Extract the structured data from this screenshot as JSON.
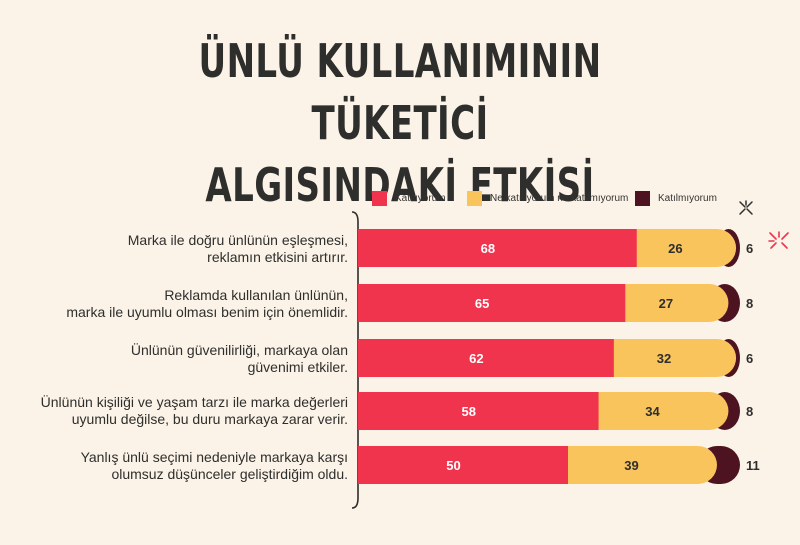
{
  "title_lines": [
    "ÜNLÜ KULLANIMININ TÜKETİCİ",
    "ALGISINDAKİ ETKİSİ"
  ],
  "colors": {
    "agree": "#F0344E",
    "neutral": "#FAC45C",
    "disagree": "#4D1320",
    "background": "#FBF3E8",
    "text": "#2E2E2C"
  },
  "legend": [
    {
      "label": "Katılıyorum",
      "color": "#F0344E"
    },
    {
      "label": "Ne katılıyorum ne katılmıyorum",
      "color": "#FAC45C"
    },
    {
      "label": "Katılmıyorum",
      "color": "#4D1320"
    }
  ],
  "chart_data": {
    "type": "bar",
    "orientation": "horizontal",
    "stacked": true,
    "categories": [
      [
        "Marka ile doğru ünlünün eşleşmesi,",
        "reklamın etkisini artırır."
      ],
      [
        "Reklamda kullanılan ünlünün,",
        "marka ile uyumlu olması benim için önemlidir."
      ],
      [
        "Ünlünün güvenilirliği, markaya olan",
        "güvenimi etkiler."
      ],
      [
        "Ünlünün kişiliği ve yaşam tarzı ile marka değerleri",
        "uyumlu değilse, bu duru markaya zarar verir."
      ],
      [
        "Yanlış ünlü seçimi nedeniyle markaya karşı",
        "olumsuz düşünceler geliştirdiğim oldu."
      ]
    ],
    "series": [
      {
        "name": "Katılıyorum",
        "values": [
          68,
          65,
          62,
          58,
          50
        ]
      },
      {
        "name": "Ne katılıyorum ne katılmıyorum",
        "values": [
          26,
          27,
          32,
          34,
          39
        ]
      },
      {
        "name": "Katılmıyorum",
        "values": [
          6,
          8,
          6,
          8,
          11
        ]
      }
    ],
    "xlim": [
      0,
      100
    ],
    "legend_position": "top-right",
    "grid": false
  },
  "decorations": [
    "sparkle-icon",
    "sparkle-icon"
  ]
}
